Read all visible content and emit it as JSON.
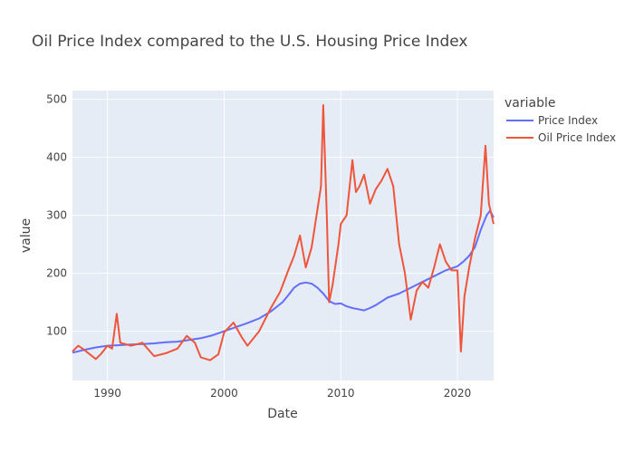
{
  "chart_data": {
    "type": "line",
    "title": "Oil Price Index compared to the U.S. Housing Price Index",
    "xlabel": "Date",
    "ylabel": "value",
    "xlim": [
      1987.0,
      2023.1
    ],
    "ylim": [
      15,
      515
    ],
    "x_ticks": [
      1990,
      2000,
      2010,
      2020
    ],
    "y_ticks": [
      100,
      200,
      300,
      400,
      500
    ],
    "grid": true,
    "legend": {
      "title": "variable",
      "position": "top-right"
    },
    "series": [
      {
        "name": "Price Index",
        "color": "#636efa",
        "x": [
          1987.0,
          1988.0,
          1989.0,
          1990.0,
          1991.0,
          1992.0,
          1993.0,
          1994.0,
          1995.0,
          1996.0,
          1997.0,
          1998.0,
          1999.0,
          2000.0,
          2001.0,
          2002.0,
          2003.0,
          2004.0,
          2005.0,
          2005.5,
          2006.0,
          2006.5,
          2007.0,
          2007.5,
          2008.0,
          2008.5,
          2009.0,
          2009.5,
          2010.0,
          2010.5,
          2011.0,
          2011.5,
          2012.0,
          2012.5,
          2013.0,
          2014.0,
          2015.0,
          2016.0,
          2017.0,
          2018.0,
          2019.0,
          2020.0,
          2020.5,
          2021.0,
          2021.5,
          2022.0,
          2022.5,
          2022.8,
          2023.1
        ],
        "values": [
          63,
          68,
          72,
          75,
          76,
          77,
          78,
          79,
          81,
          82,
          85,
          88,
          93,
          100,
          107,
          114,
          122,
          134,
          150,
          162,
          175,
          182,
          184,
          182,
          175,
          165,
          152,
          147,
          148,
          143,
          140,
          138,
          136,
          140,
          145,
          158,
          165,
          175,
          185,
          195,
          205,
          212,
          220,
          230,
          245,
          275,
          300,
          308,
          296
        ]
      },
      {
        "name": "Oil Price Index",
        "color": "#ef553b",
        "x": [
          1987.0,
          1987.5,
          1988.0,
          1988.5,
          1989.0,
          1989.5,
          1990.0,
          1990.4,
          1990.8,
          1991.1,
          1991.5,
          1992.0,
          1993.0,
          1994.0,
          1995.0,
          1996.0,
          1996.8,
          1997.5,
          1998.0,
          1998.8,
          1999.5,
          2000.0,
          2000.8,
          2001.5,
          2002.0,
          2003.0,
          2004.0,
          2004.8,
          2005.5,
          2006.0,
          2006.5,
          2007.0,
          2007.5,
          2008.0,
          2008.3,
          2008.5,
          2008.8,
          2009.0,
          2009.3,
          2009.8,
          2010.0,
          2010.5,
          2011.0,
          2011.3,
          2011.6,
          2012.0,
          2012.5,
          2013.0,
          2013.5,
          2014.0,
          2014.5,
          2015.0,
          2015.5,
          2016.0,
          2016.5,
          2017.0,
          2017.5,
          2018.0,
          2018.5,
          2019.0,
          2019.5,
          2020.0,
          2020.3,
          2020.6,
          2021.0,
          2021.5,
          2022.0,
          2022.4,
          2022.7,
          2023.1
        ],
        "values": [
          65,
          75,
          68,
          60,
          52,
          62,
          75,
          70,
          130,
          80,
          78,
          75,
          80,
          57,
          62,
          70,
          92,
          80,
          55,
          50,
          60,
          98,
          115,
          90,
          75,
          100,
          140,
          168,
          205,
          230,
          265,
          210,
          245,
          310,
          350,
          490,
          300,
          150,
          180,
          250,
          285,
          300,
          395,
          340,
          350,
          370,
          320,
          345,
          360,
          380,
          350,
          250,
          200,
          120,
          170,
          185,
          175,
          210,
          250,
          220,
          205,
          205,
          65,
          160,
          210,
          260,
          300,
          420,
          320,
          285
        ]
      }
    ]
  }
}
